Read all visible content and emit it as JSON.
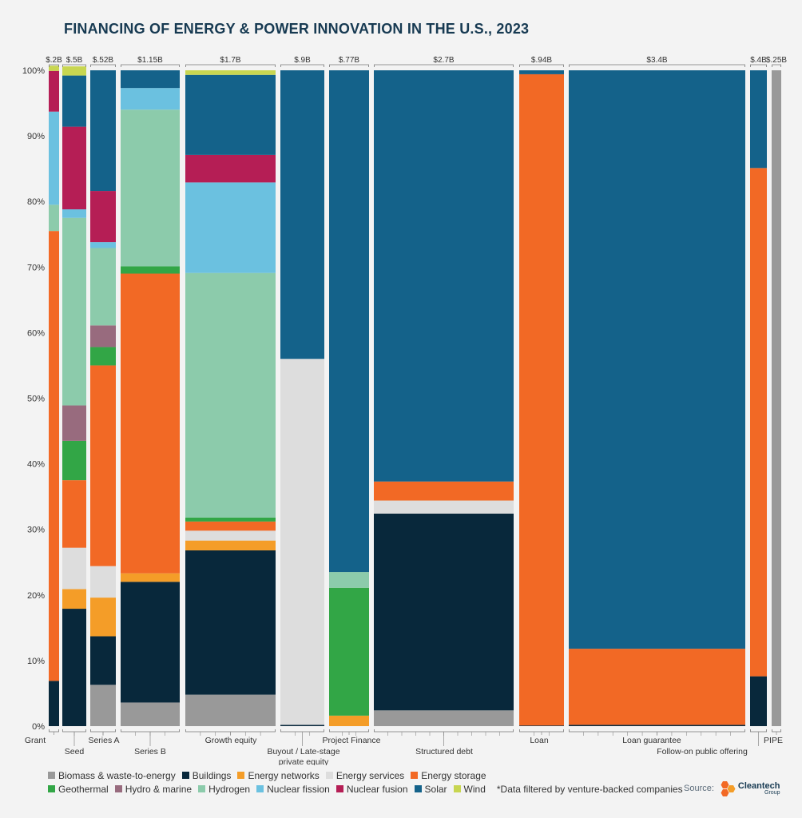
{
  "chart_data": {
    "type": "bar",
    "subtype": "marimekko-100%-stacked",
    "title": "FINANCING OF ENERGY & POWER INNOVATION IN THE U.S., 2023",
    "ylim": [
      0,
      100
    ],
    "ytick_labels": [
      "0%",
      "10%",
      "20%",
      "30%",
      "40%",
      "50%",
      "60%",
      "70%",
      "80%",
      "90%",
      "100%"
    ],
    "legend_placement": "bottom",
    "segments": [
      {
        "name": "Biomass & waste-to-energy",
        "color": "#999999"
      },
      {
        "name": "Buildings",
        "color": "#08283b"
      },
      {
        "name": "Energy networks",
        "color": "#f49d28"
      },
      {
        "name": "Energy services",
        "color": "#dddddd"
      },
      {
        "name": "Energy storage",
        "color": "#f26925"
      },
      {
        "name": "Geothermal",
        "color": "#32a646"
      },
      {
        "name": "Hydro & marine",
        "color": "#986b7e"
      },
      {
        "name": "Hydrogen",
        "color": "#8ccbab"
      },
      {
        "name": "Nuclear fission",
        "color": "#6bc1e0"
      },
      {
        "name": "Nuclear fusion",
        "color": "#b51e55"
      },
      {
        "name": "Solar",
        "color": "#14628a"
      },
      {
        "name": "Wind",
        "color": "#c8d651"
      }
    ],
    "categories": [
      {
        "name": "Grant",
        "total": "$.2B",
        "values": [
          0,
          6.9,
          0,
          0,
          68.6,
          0,
          0,
          4.0,
          14.2,
          6.2,
          0,
          0.8
        ]
      },
      {
        "name": "Seed",
        "total": "$.5B",
        "values": [
          0,
          17.9,
          3.0,
          6.3,
          10.3,
          6.0,
          5.4,
          28.6,
          1.3,
          12.6,
          7.8,
          1.4
        ]
      },
      {
        "name": "Series A",
        "total": "$.52B",
        "values": [
          6.3,
          7.4,
          5.9,
          4.8,
          30.6,
          2.8,
          3.3,
          11.8,
          0.9,
          7.8,
          18.4,
          0
        ]
      },
      {
        "name": "Series B",
        "total": "$1.15B",
        "values": [
          3.6,
          18.4,
          1.3,
          0,
          45.7,
          1.1,
          0,
          23.9,
          3.3,
          0,
          2.7,
          0
        ]
      },
      {
        "name": "Growth equity",
        "total": "$1.7B",
        "values": [
          4.8,
          22.0,
          1.5,
          1.5,
          1.4,
          0.6,
          0,
          37.3,
          13.8,
          4.2,
          12.2,
          0.7
        ]
      },
      {
        "name": "Buyout / Late-stage private equity",
        "total": "$.9B",
        "values": [
          0,
          0.2,
          0,
          55.8,
          0,
          0,
          0,
          0,
          0,
          0,
          44.0,
          0
        ]
      },
      {
        "name": "Project Finance",
        "total": "$.77B",
        "values": [
          0,
          0,
          1.6,
          0,
          0,
          19.5,
          0,
          2.4,
          0,
          0,
          76.5,
          0
        ]
      },
      {
        "name": "Structured debt",
        "total": "$2.7B",
        "values": [
          2.4,
          30.0,
          0,
          2.0,
          2.9,
          0,
          0,
          0,
          0,
          0,
          62.7,
          0
        ]
      },
      {
        "name": "Loan",
        "total": "$.94B",
        "values": [
          0,
          0.1,
          0,
          0,
          99.3,
          0,
          0,
          0,
          0,
          0,
          0.6,
          0
        ]
      },
      {
        "name": "Loan guarantee",
        "total": "$3.4B",
        "values": [
          0,
          0.2,
          0,
          0,
          11.6,
          0,
          0,
          0,
          0,
          0,
          88.2,
          0
        ]
      },
      {
        "name": "Follow-on public offering",
        "total": "$.4B",
        "values": [
          0,
          7.6,
          0,
          0,
          77.5,
          0,
          0,
          0,
          0,
          0,
          14.9,
          0
        ]
      },
      {
        "name": "PIPE",
        "total": "$.25B",
        "values": [
          100,
          0,
          0,
          0,
          0,
          0,
          0,
          0,
          0,
          0,
          0,
          0
        ]
      }
    ]
  },
  "legend": {
    "row1": [
      "Biomass & waste-to-energy",
      "Buildings",
      "Energy networks",
      "Energy services",
      "Energy storage"
    ],
    "row2": [
      "Geothermal",
      "Hydro & marine",
      "Hydrogen",
      "Nuclear fission",
      "Nuclear fusion",
      "Solar",
      "Wind"
    ],
    "footnote": "*Data filtered by venture-backed companies"
  },
  "source": {
    "label": "Source:",
    "logo_text": "Cleantech",
    "logo_subtext": "Group"
  },
  "colors": {
    "title": "#173a52",
    "background": "#f3f3f3"
  }
}
